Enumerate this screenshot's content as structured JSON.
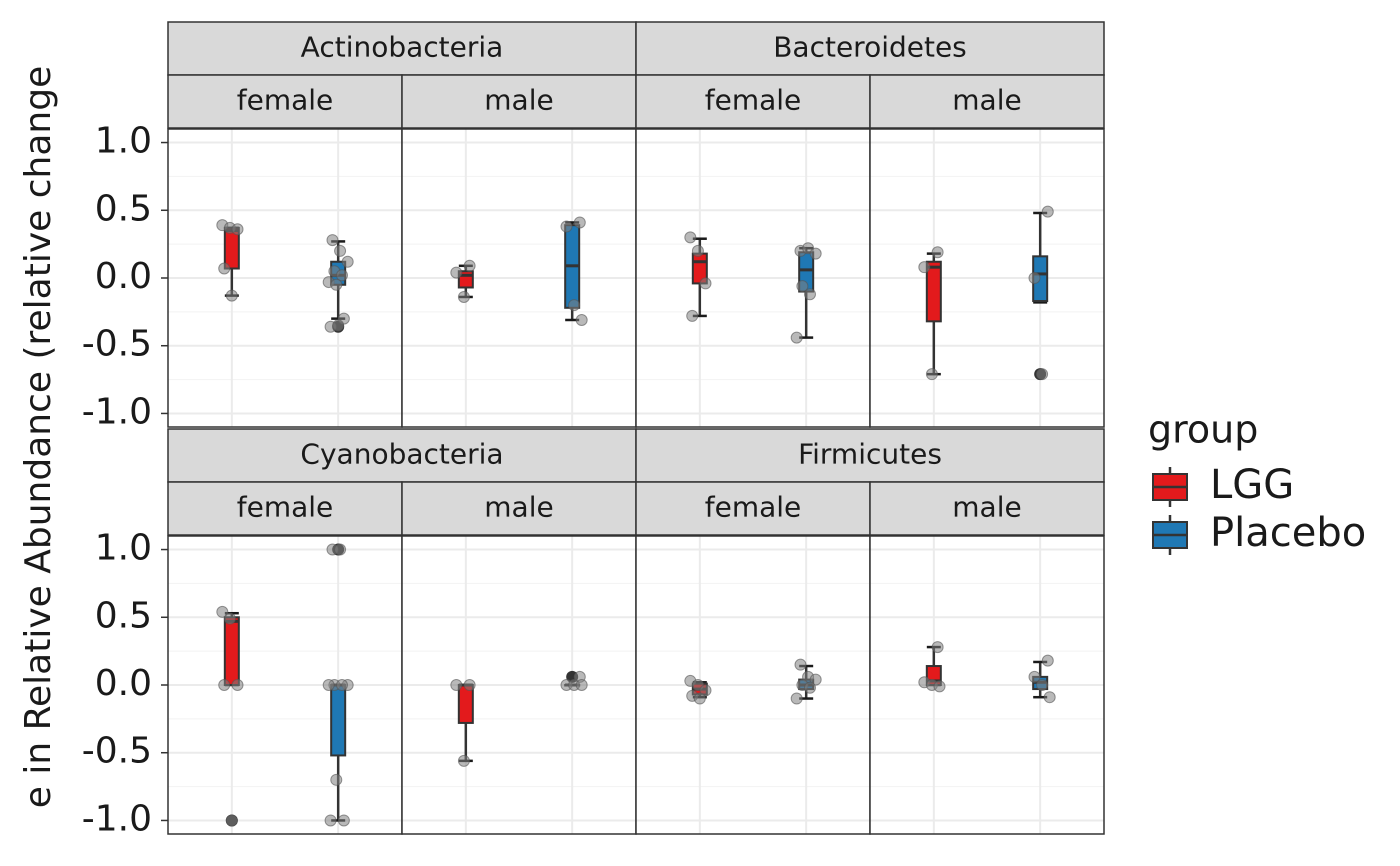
{
  "chart_data": {
    "type": "boxplot",
    "y_label": "e in Relative Abundance (relative change",
    "ylim": [
      -1.1,
      1.1
    ],
    "yticks": [
      {
        "value": -1.0,
        "label": "-1.0"
      },
      {
        "value": -0.5,
        "label": "-0.5"
      },
      {
        "value": 0,
        "label": "0.0"
      },
      {
        "value": 0.5,
        "label": "0.5"
      },
      {
        "value": 1.0,
        "label": "1.0"
      }
    ],
    "minor_yticks": [
      -0.75,
      -0.25,
      0.25,
      0.75
    ],
    "grid": true,
    "legend_title": "group",
    "legend_position": "right",
    "series": [
      {
        "name": "LGG",
        "color": "#e31a1c"
      },
      {
        "name": "Placebo",
        "color": "#1f78b4"
      }
    ],
    "facets": [
      {
        "title": "Actinobacteria",
        "panels": [
          {
            "title": "female",
            "boxes": [
              {
                "whisker_low": -0.13,
                "q1": 0.07,
                "median": 0.35,
                "q3": 0.37,
                "whisker_high": 0.37,
                "outliers": [],
                "points": [
                  0.39,
                  0.37,
                  0.36,
                  0.07,
                  -0.13
                ]
              },
              {
                "whisker_low": -0.3,
                "q1": -0.05,
                "median": 0.02,
                "q3": 0.12,
                "whisker_high": 0.27,
                "outliers": [
                  -0.36
                ],
                "points": [
                  0.28,
                  0.2,
                  0.12,
                  0.05,
                  0.02,
                  -0.03,
                  -0.05,
                  -0.3,
                  -0.36,
                  -0.35
                ]
              }
            ]
          },
          {
            "title": "male",
            "boxes": [
              {
                "whisker_low": -0.14,
                "q1": -0.07,
                "median": 0.02,
                "q3": 0.05,
                "whisker_high": 0.09,
                "outliers": [],
                "points": [
                  0.09,
                  0.04,
                  -0.14
                ]
              },
              {
                "whisker_low": -0.31,
                "q1": -0.22,
                "median": 0.09,
                "q3": 0.39,
                "whisker_high": 0.41,
                "outliers": [],
                "points": [
                  0.41,
                  0.38,
                  -0.2,
                  -0.31
                ]
              }
            ]
          }
        ]
      },
      {
        "title": "Bacteroidetes",
        "panels": [
          {
            "title": "female",
            "boxes": [
              {
                "whisker_low": -0.28,
                "q1": -0.04,
                "median": 0.12,
                "q3": 0.18,
                "whisker_high": 0.29,
                "outliers": [],
                "points": [
                  0.3,
                  0.2,
                  -0.04,
                  -0.28
                ]
              },
              {
                "whisker_low": -0.44,
                "q1": -0.1,
                "median": 0.06,
                "q3": 0.19,
                "whisker_high": 0.22,
                "outliers": [],
                "points": [
                  0.2,
                  0.22,
                  0.18,
                  -0.06,
                  -0.12,
                  -0.44
                ]
              }
            ]
          },
          {
            "title": "male",
            "boxes": [
              {
                "whisker_low": -0.71,
                "q1": -0.32,
                "median": 0.08,
                "q3": 0.12,
                "whisker_high": 0.18,
                "outliers": [],
                "points": [
                  0.19,
                  0.08,
                  -0.71
                ]
              },
              {
                "whisker_low": -0.18,
                "q1": -0.17,
                "median": 0.03,
                "q3": 0.16,
                "whisker_high": 0.48,
                "outliers": [
                  -0.71
                ],
                "points": [
                  0.49,
                  0.0,
                  -0.71
                ]
              }
            ]
          }
        ]
      },
      {
        "title": "Cyanobacteria",
        "panels": [
          {
            "title": "female",
            "boxes": [
              {
                "whisker_low": 0,
                "q1": 0,
                "median": 0.47,
                "q3": 0.5,
                "whisker_high": 0.53,
                "outliers": [
                  -1.0
                ],
                "points": [
                  0.54,
                  0.49,
                  0,
                  0,
                  -1.0
                ]
              },
              {
                "whisker_low": -1.0,
                "q1": -0.52,
                "median": 0,
                "q3": 0,
                "whisker_high": 0,
                "outliers": [
                  1.0
                ],
                "points": [
                  1.0,
                  1.0,
                  0,
                  0,
                  0,
                  0,
                  -0.7,
                  -1.0,
                  -1.0
                ]
              }
            ]
          },
          {
            "title": "male",
            "boxes": [
              {
                "whisker_low": -0.56,
                "q1": -0.28,
                "median": 0,
                "q3": 0,
                "whisker_high": 0,
                "outliers": [],
                "points": [
                  0,
                  0,
                  -0.56
                ]
              },
              {
                "whisker_low": 0,
                "q1": 0,
                "median": 0,
                "q3": 0,
                "whisker_high": 0,
                "outliers": [
                  0.06
                ],
                "points": [
                  0.06,
                  0,
                  0,
                  0
                ]
              }
            ]
          }
        ]
      },
      {
        "title": "Firmicutes",
        "panels": [
          {
            "title": "female",
            "boxes": [
              {
                "whisker_low": -0.09,
                "q1": -0.07,
                "median": -0.03,
                "q3": 0.01,
                "whisker_high": 0.02,
                "outliers": [],
                "points": [
                  0.03,
                  0,
                  -0.04,
                  -0.08,
                  -0.1
                ]
              },
              {
                "whisker_low": -0.1,
                "q1": -0.03,
                "median": 0,
                "q3": 0.04,
                "whisker_high": 0.14,
                "outliers": [],
                "points": [
                  0.15,
                  0.06,
                  0.04,
                  0,
                  -0.02,
                  -0.1
                ]
              }
            ]
          },
          {
            "title": "male",
            "boxes": [
              {
                "whisker_low": 0,
                "q1": 0,
                "median": 0.03,
                "q3": 0.14,
                "whisker_high": 0.28,
                "outliers": [],
                "points": [
                  0.28,
                  0.02,
                  0,
                  -0.01
                ]
              },
              {
                "whisker_low": -0.09,
                "q1": -0.03,
                "median": 0.02,
                "q3": 0.06,
                "whisker_high": 0.17,
                "outliers": [],
                "points": [
                  0.18,
                  0.06,
                  0,
                  -0.09
                ]
              }
            ]
          }
        ]
      }
    ]
  }
}
